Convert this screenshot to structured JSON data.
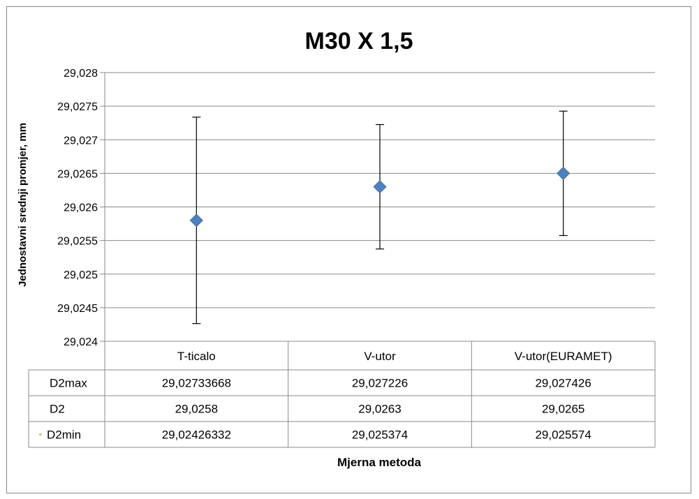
{
  "chart_data": {
    "type": "scatter",
    "title": "M30 X 1,5",
    "xlabel": "Mjerna metoda",
    "ylabel": "Jednostavni srednji promjer, mm",
    "ylim": [
      29.024,
      29.028
    ],
    "y_step": 0.0005,
    "y_tick_labels": [
      "29,024",
      "29,0245",
      "29,025",
      "29,0255",
      "29,026",
      "29,0265",
      "29,027",
      "29,0275",
      "29,028"
    ],
    "grid": true,
    "categories": [
      "T-ticalo",
      "V-utor",
      "V-utor(EURAMET)"
    ],
    "series": [
      {
        "name": "D2",
        "values": [
          29.0258,
          29.0263,
          29.0265
        ],
        "marker": "diamond",
        "color": "#4f81bd"
      }
    ],
    "error_bars": {
      "upper": [
        29.02733668,
        29.027226,
        29.027426
      ],
      "lower": [
        29.02426332,
        29.025374,
        29.025574
      ]
    },
    "data_table": {
      "rows": [
        {
          "label": "D2max",
          "values": [
            "29,02733668",
            "29,027226",
            "29,027426"
          ]
        },
        {
          "label": "D2",
          "values": [
            "29,0258",
            "29,0263",
            "29,0265"
          ]
        },
        {
          "label": "D2min",
          "values": [
            "29,02426332",
            "29,025374",
            "29,025574"
          ]
        }
      ],
      "legend_key_color": "#9bbb59"
    }
  }
}
